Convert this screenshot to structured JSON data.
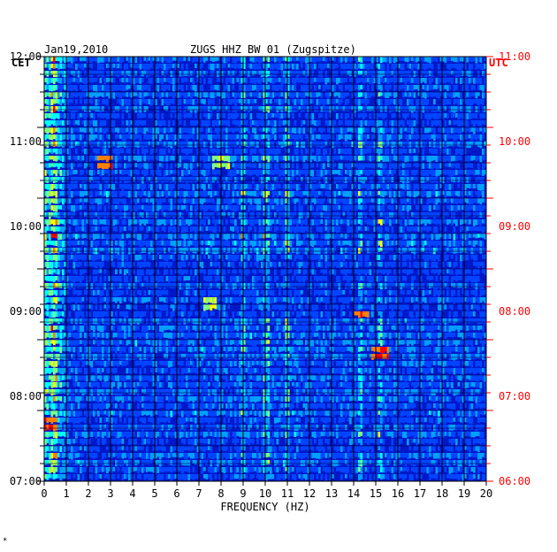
{
  "header": {
    "date": "Jan19,2010",
    "station": "ZUGS HHZ BW 01 (Zugspitze)",
    "left_tz": "CET",
    "right_tz": "UTC",
    "corner_mark": "*"
  },
  "colors": {
    "background": "#ffffff",
    "plot_background": "#0018c8",
    "utc_text": "#ff0000",
    "axis": "#000000"
  },
  "chart_data": {
    "type": "heatmap",
    "title": "ZUGS HHZ BW 01 (Zugspitze)",
    "xlabel": "FREQUENCY (HZ)",
    "xlim": [
      0,
      20
    ],
    "x_ticks": [
      "0",
      "1",
      "2",
      "3",
      "4",
      "5",
      "6",
      "7",
      "8",
      "9",
      "10",
      "11",
      "12",
      "13",
      "14",
      "15",
      "16",
      "17",
      "18",
      "19",
      "20"
    ],
    "time_range_utc": [
      "06:00",
      "12:00"
    ],
    "y_left_labels": [
      "12:00",
      "11:00",
      "10:00",
      "09:00",
      "08:00",
      "07:00"
    ],
    "y_right_labels": [
      "11:00",
      "10:00",
      "09:00",
      "08:00",
      "07:00",
      "06:00"
    ],
    "minor_ticks_per_hour": 4,
    "color_scale": [
      "#000080",
      "#0018c8",
      "#0044ff",
      "#00a0ff",
      "#00ffff",
      "#80ff80",
      "#ffff00",
      "#ff8000",
      "#ff0000"
    ],
    "grid": true,
    "dominant_frequency_bands_hz": [
      0.5,
      9,
      10,
      11,
      14.3,
      15.2
    ],
    "hotspots": [
      {
        "time_utc": "07:48",
        "freq_hz": 15.2,
        "level": "high"
      },
      {
        "time_utc": "08:20",
        "freq_hz": 14.3,
        "level": "high"
      },
      {
        "time_utc": "10:29",
        "freq_hz": 2.8,
        "level": "high"
      },
      {
        "time_utc": "10:29",
        "freq_hz": 8.0,
        "level": "medium"
      },
      {
        "time_utc": "08:30",
        "freq_hz": 7.5,
        "level": "medium"
      },
      {
        "time_utc": "06:47",
        "freq_hz": 0.3,
        "level": "high"
      }
    ]
  }
}
